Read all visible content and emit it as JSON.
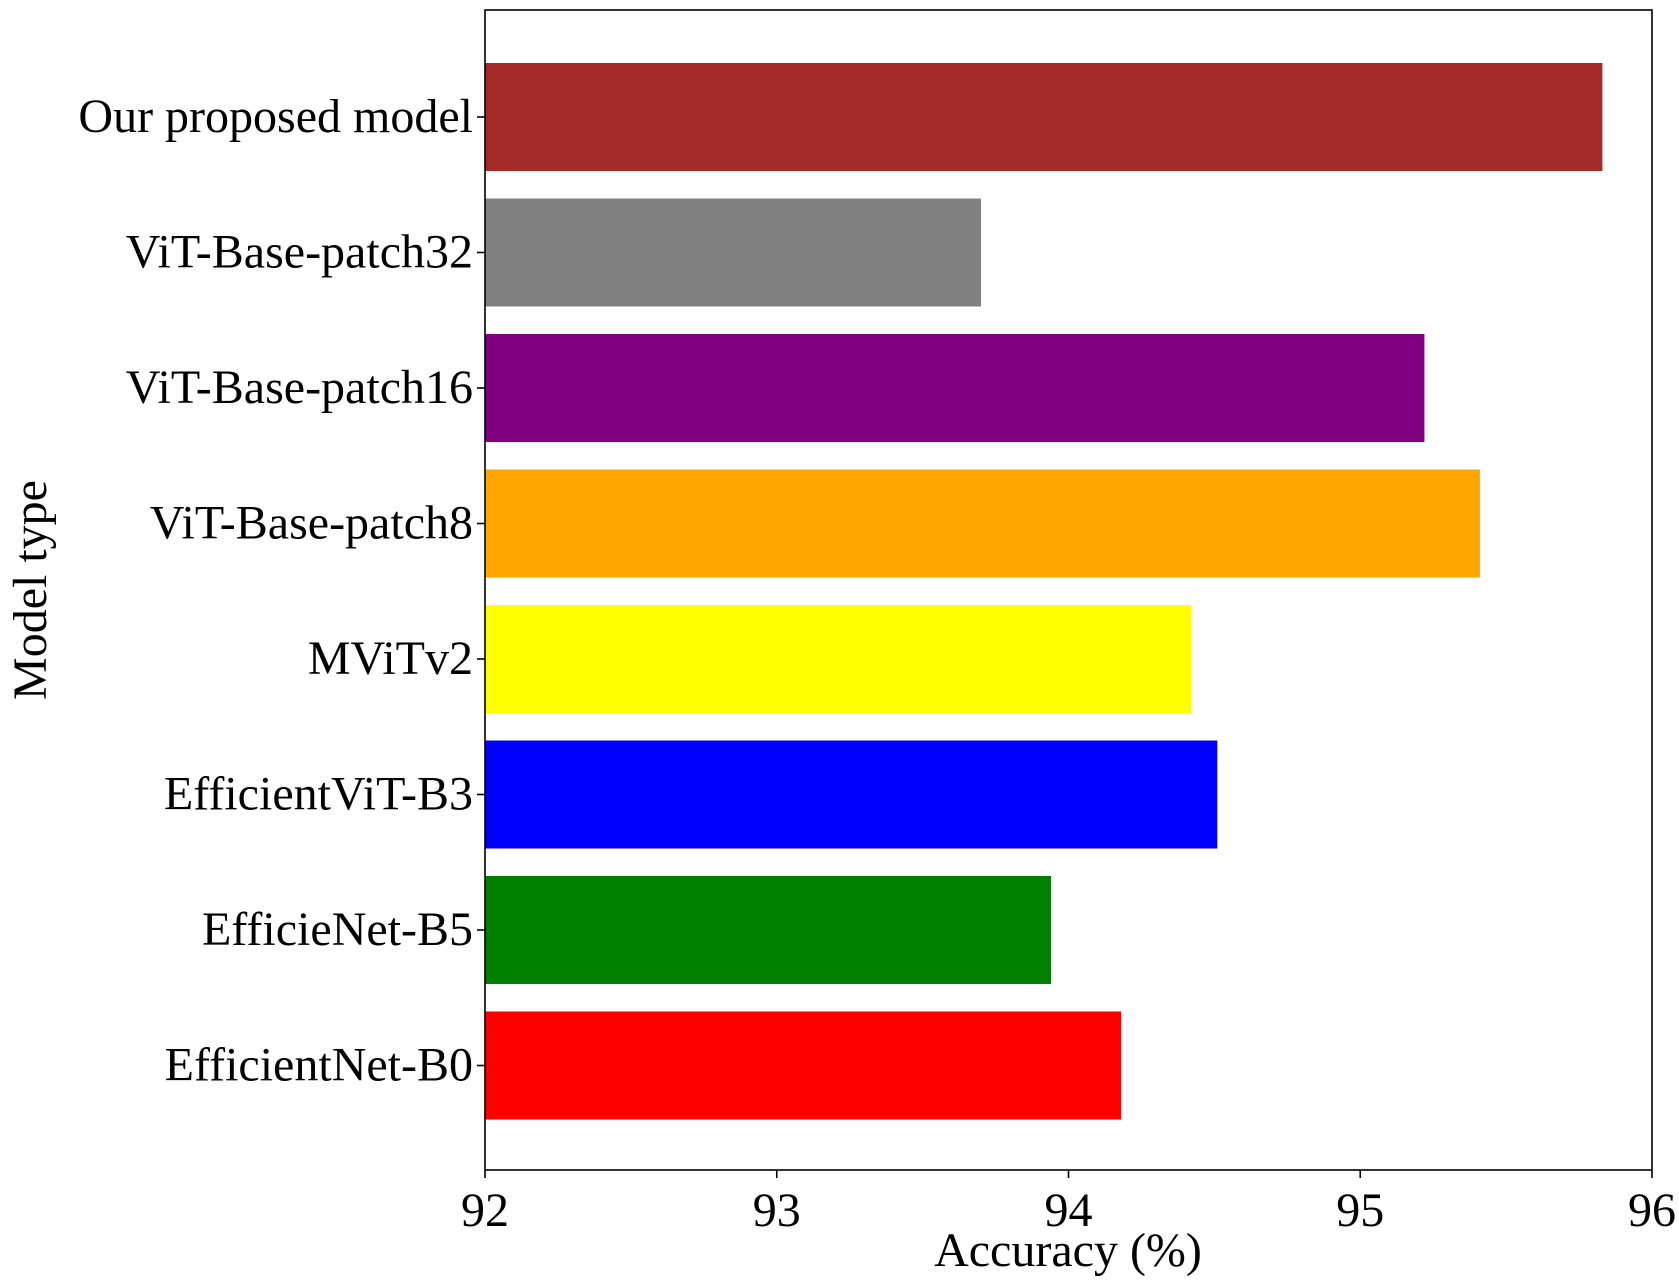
{
  "chart_data": {
    "type": "bar",
    "orientation": "horizontal",
    "title": "",
    "xlabel": "Accuracy (%)",
    "ylabel": "Model type",
    "xlim": [
      92,
      96
    ],
    "xticks": [
      "92",
      "93",
      "94",
      "95",
      "96"
    ],
    "grid": false,
    "categories": [
      "Our proposed model",
      "ViT-Base-patch32",
      "ViT-Base-patch16",
      "ViT-Base-patch8",
      "MViTv2",
      "EfficientViT-B3",
      "EfficieNet-B5",
      "EfficientNet-B0"
    ],
    "values": [
      95.83,
      93.7,
      95.22,
      95.41,
      94.42,
      94.51,
      93.94,
      94.18
    ],
    "colors": [
      "#a52a2a",
      "#808080",
      "#800080",
      "#ffa500",
      "#ffff00",
      "#0000ff",
      "#008000",
      "#ff0000"
    ]
  }
}
